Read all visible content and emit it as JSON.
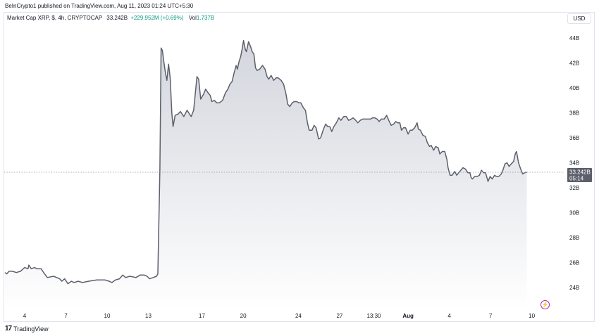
{
  "header": {
    "published": "BeInCrypto1 published on TradingView.com, Aug 11, 2023 01:24 UTC+5:30"
  },
  "legend": {
    "symbol": "Market Cap XRP, $, 4h, CRYPTOCAP",
    "value": "33.242B",
    "change": "+229.952M (+0.69%)",
    "vol_label": "Vol",
    "vol_value": "1.737B"
  },
  "currency_button": "USD",
  "last_price_tag": {
    "value": "33.242B",
    "countdown": "05:14"
  },
  "footer": {
    "brand": "TradingView"
  },
  "colors": {
    "line": "#5d606b",
    "fill_top": "#d1d4dc",
    "fill_bottom": "#ffffff",
    "tag_bg": "#5d606b",
    "change_positive": "#089981"
  },
  "icons": [
    "tradingview-logo-icon",
    "lightning-icon"
  ],
  "chart_data": {
    "type": "area",
    "title": "Market Cap XRP, $, 4h, CRYPTOCAP",
    "ylabel": "",
    "xlabel": "",
    "ylim": [
      22.8,
      46.2
    ],
    "y_ticks": [
      24,
      26,
      28,
      30,
      32,
      34,
      36,
      38,
      40,
      42,
      44
    ],
    "y_tick_labels": [
      "24B",
      "26B",
      "28B",
      "30B",
      "32B",
      "34B",
      "36B",
      "38B",
      "40B",
      "42B",
      "44B"
    ],
    "x_ticks": [
      {
        "x": 0,
        "label": "4"
      },
      {
        "x": 1,
        "label": "7"
      },
      {
        "x": 2,
        "label": "10"
      },
      {
        "x": 3,
        "label": "13"
      },
      {
        "x": 4.3,
        "label": "17"
      },
      {
        "x": 5.3,
        "label": "20"
      },
      {
        "x": 6.64,
        "label": "24"
      },
      {
        "x": 7.64,
        "label": "27"
      },
      {
        "x": 8.47,
        "label": "13:30"
      },
      {
        "x": 9.3,
        "label": "Aug"
      },
      {
        "x": 10.3,
        "label": "4"
      },
      {
        "x": 11.3,
        "label": "7"
      },
      {
        "x": 12.3,
        "label": "10"
      }
    ],
    "grid": false,
    "series": [
      {
        "values": [
          [
            -0.48,
            25.2
          ],
          [
            -0.43,
            25.1
          ],
          [
            -0.38,
            25.3
          ],
          [
            -0.3,
            25.3
          ],
          [
            -0.2,
            25.2
          ],
          [
            -0.1,
            25.3
          ],
          [
            0.0,
            25.6
          ],
          [
            0.08,
            25.5
          ],
          [
            0.1,
            25.8
          ],
          [
            0.16,
            25.5
          ],
          [
            0.24,
            25.6
          ],
          [
            0.3,
            25.5
          ],
          [
            0.4,
            25.5
          ],
          [
            0.48,
            25.1
          ],
          [
            0.55,
            24.8
          ],
          [
            0.7,
            24.9
          ],
          [
            0.85,
            24.7
          ],
          [
            0.9,
            24.5
          ],
          [
            0.97,
            24.7
          ],
          [
            1.05,
            24.3
          ],
          [
            1.13,
            24.5
          ],
          [
            1.2,
            24.4
          ],
          [
            1.3,
            24.5
          ],
          [
            1.4,
            24.4
          ],
          [
            1.55,
            24.5
          ],
          [
            1.75,
            24.6
          ],
          [
            1.95,
            24.6
          ],
          [
            2.05,
            24.5
          ],
          [
            2.12,
            24.4
          ],
          [
            2.2,
            24.6
          ],
          [
            2.3,
            24.7
          ],
          [
            2.38,
            25.0
          ],
          [
            2.45,
            24.8
          ],
          [
            2.55,
            24.9
          ],
          [
            2.7,
            24.8
          ],
          [
            2.8,
            25.0
          ],
          [
            2.9,
            25.0
          ],
          [
            2.97,
            24.9
          ],
          [
            3.03,
            24.7
          ],
          [
            3.12,
            24.8
          ],
          [
            3.2,
            24.9
          ],
          [
            3.23,
            25.1
          ],
          [
            3.28,
            33.5
          ],
          [
            3.31,
            43.2
          ],
          [
            3.34,
            43.0
          ],
          [
            3.38,
            42.0
          ],
          [
            3.42,
            41.1
          ],
          [
            3.45,
            40.6
          ],
          [
            3.49,
            41.9
          ],
          [
            3.53,
            40.8
          ],
          [
            3.57,
            38.0
          ],
          [
            3.6,
            36.9
          ],
          [
            3.65,
            37.8
          ],
          [
            3.72,
            37.9
          ],
          [
            3.78,
            38.1
          ],
          [
            3.86,
            37.7
          ],
          [
            3.94,
            38.2
          ],
          [
            3.98,
            38.0
          ],
          [
            4.04,
            37.7
          ],
          [
            4.1,
            38.2
          ],
          [
            4.18,
            40.9
          ],
          [
            4.22,
            40.7
          ],
          [
            4.27,
            39.1
          ],
          [
            4.34,
            39.5
          ],
          [
            4.39,
            39.9
          ],
          [
            4.45,
            39.6
          ],
          [
            4.5,
            39.4
          ],
          [
            4.54,
            38.9
          ],
          [
            4.6,
            39.0
          ],
          [
            4.66,
            38.8
          ],
          [
            4.72,
            38.8
          ],
          [
            4.8,
            39.0
          ],
          [
            4.87,
            39.6
          ],
          [
            4.93,
            39.9
          ],
          [
            4.98,
            40.3
          ],
          [
            5.03,
            40.5
          ],
          [
            5.08,
            41.2
          ],
          [
            5.13,
            41.8
          ],
          [
            5.16,
            41.5
          ],
          [
            5.2,
            42.1
          ],
          [
            5.24,
            42.5
          ],
          [
            5.28,
            43.2
          ],
          [
            5.31,
            43.8
          ],
          [
            5.35,
            43.1
          ],
          [
            5.38,
            42.9
          ],
          [
            5.43,
            43.7
          ],
          [
            5.48,
            43.3
          ],
          [
            5.52,
            42.9
          ],
          [
            5.56,
            42.7
          ],
          [
            5.6,
            41.6
          ],
          [
            5.64,
            41.4
          ],
          [
            5.7,
            41.5
          ],
          [
            5.77,
            41.8
          ],
          [
            5.83,
            41.5
          ],
          [
            5.88,
            40.9
          ],
          [
            5.92,
            40.7
          ],
          [
            5.98,
            41.0
          ],
          [
            6.04,
            40.6
          ],
          [
            6.1,
            40.8
          ],
          [
            6.15,
            40.8
          ],
          [
            6.22,
            40.6
          ],
          [
            6.28,
            40.3
          ],
          [
            6.34,
            39.5
          ],
          [
            6.38,
            38.7
          ],
          [
            6.43,
            38.5
          ],
          [
            6.49,
            38.8
          ],
          [
            6.54,
            38.9
          ],
          [
            6.6,
            38.9
          ],
          [
            6.65,
            38.8
          ],
          [
            6.7,
            38.8
          ],
          [
            6.76,
            38.4
          ],
          [
            6.81,
            38.2
          ],
          [
            6.86,
            37.2
          ],
          [
            6.9,
            36.6
          ],
          [
            6.97,
            36.6
          ],
          [
            7.02,
            37.0
          ],
          [
            7.07,
            36.8
          ],
          [
            7.13,
            35.9
          ],
          [
            7.18,
            36.0
          ],
          [
            7.25,
            36.7
          ],
          [
            7.3,
            37.1
          ],
          [
            7.35,
            36.9
          ],
          [
            7.4,
            36.9
          ],
          [
            7.45,
            36.5
          ],
          [
            7.5,
            36.9
          ],
          [
            7.56,
            37.2
          ],
          [
            7.62,
            37.6
          ],
          [
            7.67,
            37.4
          ],
          [
            7.74,
            37.7
          ],
          [
            7.8,
            37.7
          ],
          [
            7.86,
            37.4
          ],
          [
            7.92,
            37.5
          ],
          [
            7.97,
            37.6
          ],
          [
            8.03,
            37.4
          ],
          [
            8.08,
            37.2
          ],
          [
            8.14,
            37.4
          ],
          [
            8.2,
            37.5
          ],
          [
            8.27,
            37.5
          ],
          [
            8.33,
            37.5
          ],
          [
            8.39,
            37.5
          ],
          [
            8.44,
            37.6
          ],
          [
            8.49,
            37.6
          ],
          [
            8.55,
            37.5
          ],
          [
            8.6,
            37.3
          ],
          [
            8.65,
            37.5
          ],
          [
            8.72,
            37.5
          ],
          [
            8.78,
            37.8
          ],
          [
            8.83,
            37.4
          ],
          [
            8.89,
            37.0
          ],
          [
            8.95,
            37.1
          ],
          [
            9.0,
            37.3
          ],
          [
            9.05,
            37.2
          ],
          [
            9.1,
            37.2
          ],
          [
            9.14,
            36.6
          ],
          [
            9.19,
            36.8
          ],
          [
            9.24,
            36.8
          ],
          [
            9.3,
            36.3
          ],
          [
            9.35,
            36.6
          ],
          [
            9.4,
            36.6
          ],
          [
            9.46,
            36.8
          ],
          [
            9.52,
            37.2
          ],
          [
            9.55,
            36.7
          ],
          [
            9.6,
            36.6
          ],
          [
            9.66,
            36.2
          ],
          [
            9.72,
            36.1
          ],
          [
            9.77,
            35.6
          ],
          [
            9.82,
            35.3
          ],
          [
            9.86,
            35.4
          ],
          [
            9.92,
            35.0
          ],
          [
            9.97,
            35.3
          ],
          [
            10.03,
            35.2
          ],
          [
            10.07,
            34.7
          ],
          [
            10.13,
            34.9
          ],
          [
            10.19,
            34.9
          ],
          [
            10.24,
            34.3
          ],
          [
            10.27,
            33.6
          ],
          [
            10.32,
            33.0
          ],
          [
            10.37,
            33.0
          ],
          [
            10.43,
            33.3
          ],
          [
            10.48,
            33.0
          ],
          [
            10.53,
            33.2
          ],
          [
            10.58,
            33.4
          ],
          [
            10.63,
            33.6
          ],
          [
            10.69,
            33.5
          ],
          [
            10.75,
            33.2
          ],
          [
            10.8,
            33.2
          ],
          [
            10.83,
            32.8
          ],
          [
            10.86,
            32.7
          ],
          [
            10.92,
            32.9
          ],
          [
            10.98,
            32.9
          ],
          [
            11.03,
            33.0
          ],
          [
            11.08,
            33.4
          ],
          [
            11.13,
            33.2
          ],
          [
            11.18,
            33.2
          ],
          [
            11.24,
            32.5
          ],
          [
            11.29,
            32.9
          ],
          [
            11.34,
            32.7
          ],
          [
            11.4,
            33.0
          ],
          [
            11.44,
            32.9
          ],
          [
            11.5,
            32.9
          ],
          [
            11.56,
            33.1
          ],
          [
            11.6,
            33.4
          ],
          [
            11.65,
            33.9
          ],
          [
            11.7,
            34.0
          ],
          [
            11.75,
            33.7
          ],
          [
            11.8,
            33.9
          ],
          [
            11.86,
            34.1
          ],
          [
            11.9,
            34.7
          ],
          [
            11.93,
            34.9
          ],
          [
            11.98,
            34.0
          ],
          [
            12.03,
            33.5
          ],
          [
            12.08,
            33.1
          ],
          [
            12.13,
            33.2
          ],
          [
            12.18,
            33.242
          ]
        ]
      }
    ],
    "last_value": 33.242
  }
}
